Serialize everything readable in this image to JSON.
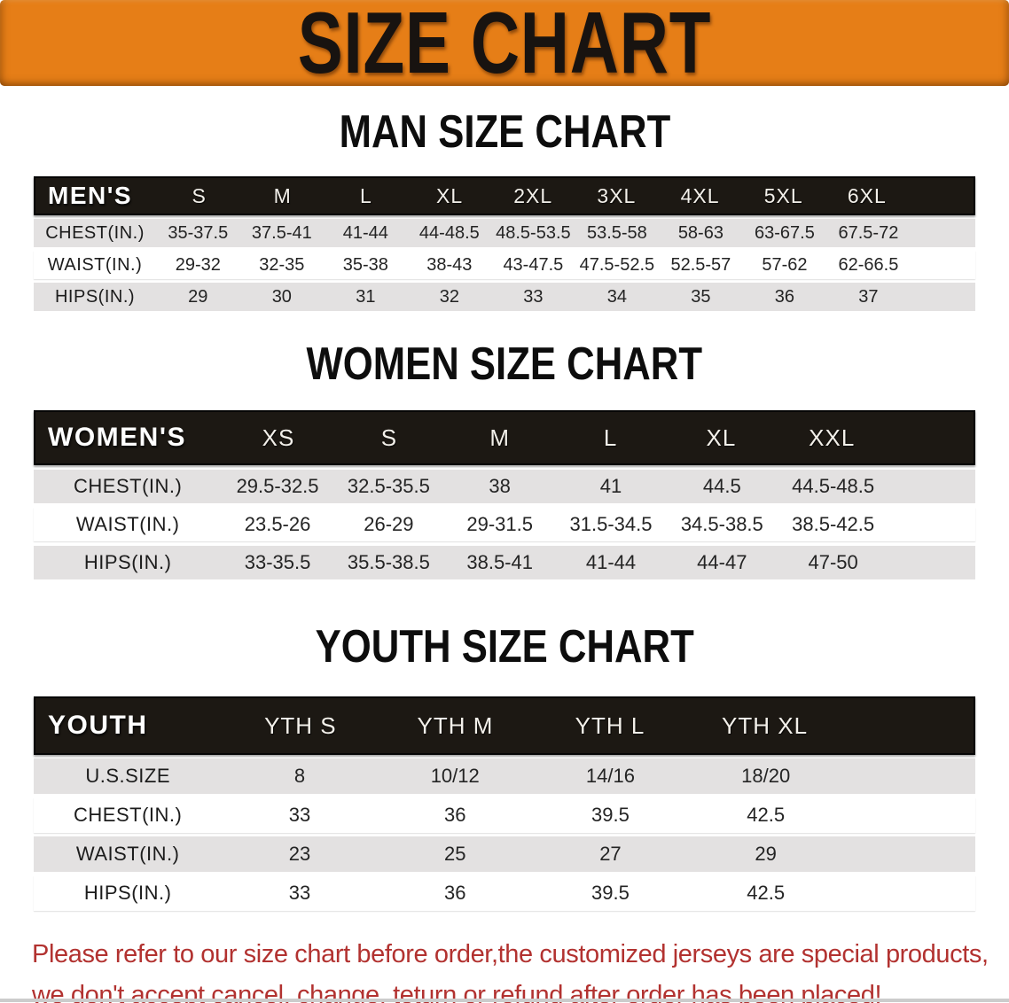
{
  "banner": {
    "title": "SIZE CHART"
  },
  "colors": {
    "banner_bg": "#e67e17",
    "table_header_bg": "#1c1813",
    "row_gray": "#e3e1e1",
    "disclaimer_red": "#b23230"
  },
  "sections": [
    {
      "heading": "MAN SIZE CHART",
      "table": {
        "label": "MEN'S",
        "columns": [
          "S",
          "M",
          "L",
          "XL",
          "2XL",
          "3XL",
          "4XL",
          "5XL",
          "6XL"
        ],
        "rows": [
          {
            "label": "CHEST(IN.)",
            "values": [
              "35-37.5",
              "37.5-41",
              "41-44",
              "44-48.5",
              "48.5-53.5",
              "53.5-58",
              "58-63",
              "63-67.5",
              "67.5-72"
            ]
          },
          {
            "label": "WAIST(IN.)",
            "values": [
              "29-32",
              "32-35",
              "35-38",
              "38-43",
              "43-47.5",
              "47.5-52.5",
              "52.5-57",
              "57-62",
              "62-66.5"
            ]
          },
          {
            "label": "HIPS(IN.)",
            "values": [
              "29",
              "30",
              "31",
              "32",
              "33",
              "34",
              "35",
              "36",
              "37"
            ]
          }
        ]
      }
    },
    {
      "heading": "WOMEN SIZE CHART",
      "table": {
        "label": "WOMEN'S",
        "columns": [
          "XS",
          "S",
          "M",
          "L",
          "XL",
          "XXL"
        ],
        "rows": [
          {
            "label": "CHEST(IN.)",
            "values": [
              "29.5-32.5",
              "32.5-35.5",
              "38",
              "41",
              "44.5",
              "44.5-48.5"
            ]
          },
          {
            "label": "WAIST(IN.)",
            "values": [
              "23.5-26",
              "26-29",
              "29-31.5",
              "31.5-34.5",
              "34.5-38.5",
              "38.5-42.5"
            ]
          },
          {
            "label": "HIPS(IN.)",
            "values": [
              "33-35.5",
              "35.5-38.5",
              "38.5-41",
              "41-44",
              "44-47",
              "47-50"
            ]
          }
        ]
      }
    },
    {
      "heading": "YOUTH SIZE CHART",
      "table": {
        "label": "YOUTH",
        "columns": [
          "YTH S",
          "YTH M",
          "YTH L",
          "YTH XL"
        ],
        "rows": [
          {
            "label": "U.S.SIZE",
            "values": [
              "8",
              "10/12",
              "14/16",
              "18/20"
            ]
          },
          {
            "label": "CHEST(IN.)",
            "values": [
              "33",
              "36",
              "39.5",
              "42.5"
            ]
          },
          {
            "label": "WAIST(IN.)",
            "values": [
              "23",
              "25",
              "27",
              "29"
            ]
          },
          {
            "label": "HIPS(IN.)",
            "values": [
              "33",
              "36",
              "39.5",
              "42.5"
            ]
          }
        ]
      }
    }
  ],
  "disclaimer": {
    "line1": "Please refer to our size chart before order,the customized jerseys are special products,",
    "line2": "we don't accept cancel, change, teturn or refund after order has been placed!"
  }
}
